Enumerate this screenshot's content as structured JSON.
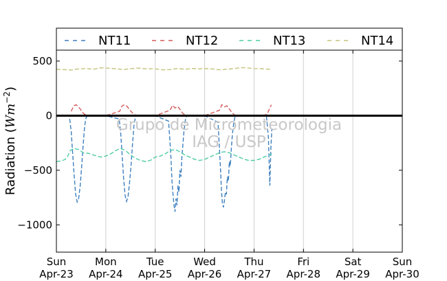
{
  "chart_data": {
    "type": "line",
    "ylabel": "Radiation (Wm⁻²)",
    "ylabel_main": "Radiation (",
    "ylabel_unit": "Wm",
    "ylabel_exp": "−2",
    "ylabel_close": ")",
    "ylim": [
      -1250,
      600
    ],
    "yticks": [
      {
        "value": 500,
        "label": "500"
      },
      {
        "value": 0,
        "label": "0"
      },
      {
        "value": -500,
        "label": "−500"
      },
      {
        "value": -1000,
        "label": "−1000"
      }
    ],
    "xlim": [
      0,
      7
    ],
    "xticks": [
      {
        "value": 0,
        "day": "Sun",
        "date": "Apr-23"
      },
      {
        "value": 1,
        "day": "Mon",
        "date": "Apr-24"
      },
      {
        "value": 2,
        "day": "Tue",
        "date": "Apr-25"
      },
      {
        "value": 3,
        "day": "Wed",
        "date": "Apr-26"
      },
      {
        "value": 4,
        "day": "Thu",
        "date": "Apr-27"
      },
      {
        "value": 5,
        "day": "Fri",
        "date": "Apr-28"
      },
      {
        "value": 6,
        "day": "Sat",
        "date": "Apr-29"
      },
      {
        "value": 7,
        "day": "Sun",
        "date": "Apr-30"
      }
    ],
    "grid": "vertical",
    "legend_position": "top",
    "reference_line": 0,
    "watermark": [
      "Grupo de Micrometeorologia",
      "IAG / USP"
    ],
    "series": [
      {
        "name": "NT11",
        "color": "#3d7fbf",
        "points": [
          [
            0.27,
            -30
          ],
          [
            0.3,
            -150
          ],
          [
            0.33,
            -350
          ],
          [
            0.36,
            -550
          ],
          [
            0.39,
            -720
          ],
          [
            0.42,
            -790
          ],
          [
            0.45,
            -760
          ],
          [
            0.48,
            -650
          ],
          [
            0.51,
            -480
          ],
          [
            0.54,
            -280
          ],
          [
            0.57,
            -100
          ],
          [
            0.6,
            -20
          ],
          [
            0.63,
            0
          ],
          [
            1.0,
            0
          ],
          [
            1.27,
            -30
          ],
          [
            1.3,
            -150
          ],
          [
            1.33,
            -360
          ],
          [
            1.36,
            -570
          ],
          [
            1.39,
            -730
          ],
          [
            1.42,
            -785
          ],
          [
            1.45,
            -740
          ],
          [
            1.48,
            -620
          ],
          [
            1.51,
            -460
          ],
          [
            1.54,
            -260
          ],
          [
            1.57,
            -90
          ],
          [
            1.6,
            -10
          ],
          [
            1.63,
            0
          ],
          [
            2.0,
            0
          ],
          [
            2.27,
            -50
          ],
          [
            2.3,
            -250
          ],
          [
            2.32,
            -400
          ],
          [
            2.34,
            -600
          ],
          [
            2.36,
            -720
          ],
          [
            2.38,
            -820
          ],
          [
            2.4,
            -880
          ],
          [
            2.42,
            -760
          ],
          [
            2.44,
            -820
          ],
          [
            2.46,
            -640
          ],
          [
            2.48,
            -700
          ],
          [
            2.5,
            -500
          ],
          [
            2.52,
            -560
          ],
          [
            2.54,
            -380
          ],
          [
            2.56,
            -260
          ],
          [
            2.58,
            -150
          ],
          [
            2.61,
            -40
          ],
          [
            2.64,
            0
          ],
          [
            3.0,
            0
          ],
          [
            3.27,
            -60
          ],
          [
            3.3,
            -300
          ],
          [
            3.32,
            -480
          ],
          [
            3.34,
            -680
          ],
          [
            3.36,
            -800
          ],
          [
            3.38,
            -840
          ],
          [
            3.4,
            -780
          ],
          [
            3.42,
            -700
          ],
          [
            3.44,
            -720
          ],
          [
            3.46,
            -560
          ],
          [
            3.48,
            -600
          ],
          [
            3.5,
            -420
          ],
          [
            3.52,
            -460
          ],
          [
            3.54,
            -300
          ],
          [
            3.56,
            -180
          ],
          [
            3.59,
            -60
          ],
          [
            3.62,
            0
          ],
          [
            4.0,
            0
          ],
          [
            4.25,
            0
          ],
          [
            4.29,
            -200
          ],
          [
            4.32,
            -640
          ],
          [
            4.34,
            -300
          ],
          [
            4.36,
            -120
          ]
        ]
      },
      {
        "name": "NT12",
        "color": "#d45a5a",
        "points": [
          [
            0.3,
            40
          ],
          [
            0.35,
            90
          ],
          [
            0.4,
            100
          ],
          [
            0.45,
            80
          ],
          [
            0.5,
            50
          ],
          [
            0.55,
            20
          ],
          [
            0.62,
            0
          ],
          [
            1.0,
            0
          ],
          [
            1.28,
            40
          ],
          [
            1.33,
            90
          ],
          [
            1.38,
            100
          ],
          [
            1.43,
            85
          ],
          [
            1.48,
            55
          ],
          [
            1.55,
            20
          ],
          [
            1.62,
            0
          ],
          [
            2.0,
            0
          ],
          [
            2.3,
            50
          ],
          [
            2.35,
            95
          ],
          [
            2.4,
            70
          ],
          [
            2.45,
            85
          ],
          [
            2.5,
            60
          ],
          [
            2.55,
            25
          ],
          [
            2.62,
            0
          ],
          [
            3.0,
            0
          ],
          [
            3.3,
            50
          ],
          [
            3.35,
            100
          ],
          [
            3.4,
            80
          ],
          [
            3.45,
            90
          ],
          [
            3.5,
            60
          ],
          [
            3.55,
            30
          ],
          [
            3.62,
            0
          ],
          [
            4.0,
            0
          ],
          [
            4.2,
            0
          ],
          [
            4.27,
            20
          ],
          [
            4.31,
            60
          ],
          [
            4.35,
            100
          ]
        ]
      },
      {
        "name": "NT13",
        "color": "#4ecba5",
        "points": [
          [
            0.0,
            -420
          ],
          [
            0.1,
            -415
          ],
          [
            0.18,
            -400
          ],
          [
            0.22,
            -380
          ],
          [
            0.28,
            -320
          ],
          [
            0.35,
            -300
          ],
          [
            0.45,
            -310
          ],
          [
            0.55,
            -340
          ],
          [
            0.65,
            -345
          ],
          [
            0.75,
            -360
          ],
          [
            0.9,
            -380
          ],
          [
            1.0,
            -370
          ],
          [
            1.1,
            -350
          ],
          [
            1.2,
            -320
          ],
          [
            1.3,
            -300
          ],
          [
            1.4,
            -320
          ],
          [
            1.5,
            -360
          ],
          [
            1.6,
            -390
          ],
          [
            1.7,
            -410
          ],
          [
            1.8,
            -420
          ],
          [
            1.9,
            -410
          ],
          [
            2.0,
            -380
          ],
          [
            2.1,
            -370
          ],
          [
            2.2,
            -350
          ],
          [
            2.3,
            -320
          ],
          [
            2.4,
            -310
          ],
          [
            2.5,
            -330
          ],
          [
            2.6,
            -360
          ],
          [
            2.7,
            -380
          ],
          [
            2.8,
            -400
          ],
          [
            2.9,
            -410
          ],
          [
            3.0,
            -400
          ],
          [
            3.1,
            -380
          ],
          [
            3.2,
            -360
          ],
          [
            3.3,
            -340
          ],
          [
            3.4,
            -330
          ],
          [
            3.5,
            -340
          ],
          [
            3.6,
            -360
          ],
          [
            3.7,
            -380
          ],
          [
            3.8,
            -400
          ],
          [
            3.9,
            -410
          ],
          [
            4.0,
            -410
          ],
          [
            4.1,
            -400
          ],
          [
            4.2,
            -380
          ],
          [
            4.3,
            -360
          ],
          [
            4.36,
            -350
          ]
        ]
      },
      {
        "name": "NT14",
        "color": "#c2c27a",
        "points": [
          [
            0.0,
            425
          ],
          [
            0.15,
            422
          ],
          [
            0.3,
            418
          ],
          [
            0.45,
            428
          ],
          [
            0.6,
            432
          ],
          [
            0.75,
            425
          ],
          [
            0.9,
            438
          ],
          [
            1.0,
            436
          ],
          [
            1.2,
            430
          ],
          [
            1.35,
            422
          ],
          [
            1.5,
            430
          ],
          [
            1.65,
            436
          ],
          [
            1.8,
            430
          ],
          [
            2.0,
            428
          ],
          [
            2.15,
            420
          ],
          [
            2.3,
            422
          ],
          [
            2.45,
            432
          ],
          [
            2.6,
            425
          ],
          [
            2.75,
            432
          ],
          [
            2.9,
            428
          ],
          [
            3.0,
            432
          ],
          [
            3.15,
            428
          ],
          [
            3.3,
            420
          ],
          [
            3.45,
            425
          ],
          [
            3.6,
            432
          ],
          [
            3.75,
            440
          ],
          [
            3.9,
            436
          ],
          [
            4.0,
            432
          ],
          [
            4.15,
            430
          ],
          [
            4.3,
            425
          ],
          [
            4.36,
            418
          ]
        ]
      }
    ]
  }
}
